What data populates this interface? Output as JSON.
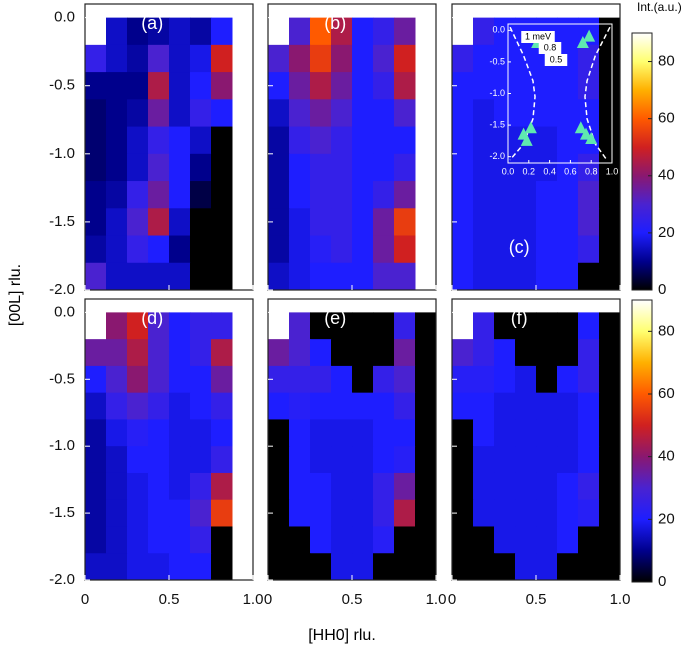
{
  "chart_data": {
    "type": "heatmap",
    "xlabel": "[HH0] rlu.",
    "ylabel": "[00L] rlu.",
    "xlim": [
      0,
      1
    ],
    "ylim": [
      -2,
      0.1
    ],
    "xticks": [
      0,
      0.5,
      {
        "value": 1,
        "label": "1.0"
      }
    ],
    "yticks": [
      {
        "value": 0,
        "label": "0.0"
      },
      -0.5,
      {
        "value": -1,
        "label": "-1.0"
      },
      -1.5,
      {
        "value": -2,
        "label": "-2.0"
      }
    ],
    "x_bins": [
      0,
      0.125,
      0.25,
      0.375,
      0.5,
      0.625,
      0.75,
      0.875,
      1
    ],
    "y_bins": [
      0,
      -0.2,
      -0.4,
      -0.6,
      -0.8,
      -1,
      -1.2,
      -1.4,
      -1.6,
      -1.8,
      -2
    ],
    "missing_color": "#ffffff",
    "colorbar": {
      "label": "Int.(a.u.)",
      "lim": [
        0,
        90
      ],
      "ticks": [
        0,
        20,
        40,
        60,
        80
      ],
      "colors": [
        "#000000",
        "#00008c",
        "#1e1eff",
        "#4a22d0",
        "#8a1870",
        "#d02020",
        "#ff5a00",
        "#ffb000",
        "#ffff70",
        "#ffffff"
      ]
    },
    "panels": [
      {
        "label": "(a)",
        "z": [
          [
            null,
            15,
            10,
            12,
            15,
            12,
            20,
            null
          ],
          [
            25,
            15,
            12,
            30,
            15,
            18,
            50,
            null
          ],
          [
            10,
            10,
            10,
            45,
            15,
            20,
            40,
            null
          ],
          [
            8,
            10,
            12,
            35,
            15,
            25,
            20,
            null
          ],
          [
            8,
            10,
            15,
            25,
            20,
            15,
            0,
            null
          ],
          [
            8,
            10,
            15,
            30,
            20,
            10,
            0,
            null
          ],
          [
            10,
            12,
            25,
            35,
            20,
            5,
            0,
            null
          ],
          [
            10,
            15,
            30,
            45,
            15,
            0,
            0,
            null
          ],
          [
            12,
            15,
            25,
            20,
            10,
            0,
            0,
            null
          ],
          [
            30,
            15,
            15,
            15,
            15,
            0,
            0,
            null
          ]
        ]
      },
      {
        "label": "(b)",
        "z": [
          [
            null,
            30,
            60,
            45,
            20,
            25,
            35,
            null
          ],
          [
            30,
            40,
            55,
            40,
            20,
            30,
            50,
            null
          ],
          [
            20,
            35,
            45,
            35,
            20,
            25,
            45,
            null
          ],
          [
            15,
            30,
            35,
            30,
            20,
            20,
            30,
            null
          ],
          [
            12,
            25,
            30,
            25,
            20,
            20,
            20,
            null
          ],
          [
            12,
            20,
            25,
            25,
            20,
            20,
            25,
            null
          ],
          [
            12,
            20,
            25,
            25,
            20,
            25,
            35,
            null
          ],
          [
            12,
            18,
            25,
            25,
            20,
            35,
            55,
            null
          ],
          [
            12,
            18,
            22,
            25,
            20,
            35,
            50,
            null
          ],
          [
            15,
            18,
            20,
            20,
            20,
            30,
            30,
            null
          ]
        ]
      },
      {
        "label": "(c)",
        "z": [
          [
            null,
            25,
            20,
            20,
            20,
            20,
            20,
            0
          ],
          [
            25,
            20,
            20,
            20,
            20,
            20,
            25,
            0
          ],
          [
            20,
            20,
            20,
            20,
            20,
            20,
            25,
            0
          ],
          [
            20,
            18,
            20,
            20,
            20,
            20,
            20,
            0
          ],
          [
            20,
            18,
            18,
            18,
            18,
            20,
            20,
            0
          ],
          [
            20,
            18,
            18,
            18,
            18,
            20,
            25,
            0
          ],
          [
            20,
            18,
            18,
            18,
            20,
            20,
            30,
            0
          ],
          [
            20,
            18,
            18,
            18,
            20,
            20,
            30,
            0
          ],
          [
            20,
            18,
            18,
            18,
            20,
            20,
            25,
            0
          ],
          [
            20,
            18,
            18,
            18,
            20,
            20,
            0,
            0
          ]
        ],
        "inset": {
          "type": "scatter",
          "xlim": [
            0,
            1
          ],
          "ylim": [
            -2.1,
            0.1
          ],
          "xticks": [
            {
              "value": 0,
              "label": "0.0"
            },
            0.2,
            0.4,
            0.6,
            0.8,
            {
              "value": 1,
              "label": "1.0"
            }
          ],
          "yticks": [
            {
              "value": 0,
              "label": "0.0"
            },
            -0.5,
            {
              "value": -1,
              "label": "-1.0"
            },
            -1.5,
            {
              "value": -2,
              "label": "-2.0"
            }
          ],
          "annotations": [
            "1 meV",
            "0.8",
            "0.5"
          ],
          "marker_color": "#5fe8b0",
          "x": [
            0.2,
            0.28,
            0.72,
            0.78,
            0.15,
            0.22,
            0.18,
            0.7,
            0.75,
            0.8
          ],
          "y": [
            -0.12,
            -0.2,
            -0.2,
            -0.1,
            -1.65,
            -1.55,
            -1.75,
            -1.55,
            -1.65,
            -1.72
          ],
          "curves": [
            {
              "color": "#ffffff",
              "x": [
                0.02,
                0.15,
                0.24,
                0.26,
                0.24,
                0.15,
                0.02
              ],
              "y": [
                0.05,
                -0.4,
                -0.8,
                -1.05,
                -1.4,
                -1.8,
                -2.05
              ]
            },
            {
              "color": "#ffffff",
              "x": [
                0.98,
                0.84,
                0.76,
                0.74,
                0.76,
                0.84,
                0.95
              ],
              "y": [
                0.05,
                -0.4,
                -0.8,
                -1.05,
                -1.4,
                -1.8,
                -2.05
              ]
            }
          ]
        }
      },
      {
        "label": "(d)",
        "z": [
          [
            null,
            40,
            50,
            30,
            20,
            25,
            25,
            null
          ],
          [
            35,
            35,
            45,
            30,
            20,
            25,
            45,
            null
          ],
          [
            20,
            30,
            40,
            30,
            20,
            20,
            35,
            null
          ],
          [
            15,
            25,
            30,
            25,
            18,
            20,
            25,
            null
          ],
          [
            12,
            18,
            22,
            20,
            18,
            18,
            20,
            null
          ],
          [
            12,
            15,
            20,
            20,
            18,
            18,
            25,
            null
          ],
          [
            12,
            15,
            18,
            20,
            18,
            25,
            45,
            null
          ],
          [
            12,
            15,
            18,
            20,
            20,
            30,
            55,
            null
          ],
          [
            12,
            15,
            18,
            20,
            20,
            25,
            0,
            null
          ],
          [
            15,
            15,
            18,
            18,
            20,
            20,
            0,
            null
          ]
        ]
      },
      {
        "label": "(e)",
        "z": [
          [
            null,
            30,
            0,
            0,
            0,
            0,
            25,
            0
          ],
          [
            35,
            30,
            20,
            0,
            0,
            0,
            35,
            0
          ],
          [
            25,
            25,
            25,
            20,
            0,
            25,
            30,
            0
          ],
          [
            20,
            22,
            20,
            20,
            20,
            20,
            25,
            0
          ],
          [
            0,
            20,
            18,
            18,
            18,
            20,
            20,
            0
          ],
          [
            0,
            20,
            18,
            18,
            18,
            20,
            22,
            0
          ],
          [
            0,
            20,
            20,
            18,
            18,
            25,
            35,
            0
          ],
          [
            0,
            20,
            20,
            18,
            18,
            25,
            45,
            0
          ],
          [
            0,
            0,
            20,
            18,
            18,
            22,
            0,
            0
          ],
          [
            0,
            0,
            0,
            18,
            18,
            0,
            0,
            0
          ]
        ]
      },
      {
        "label": "(f)",
        "z": [
          [
            null,
            25,
            0,
            0,
            0,
            0,
            20,
            0
          ],
          [
            30,
            25,
            20,
            0,
            0,
            0,
            25,
            0
          ],
          [
            22,
            22,
            20,
            18,
            0,
            20,
            25,
            0
          ],
          [
            20,
            20,
            18,
            18,
            18,
            18,
            20,
            0
          ],
          [
            0,
            20,
            18,
            18,
            18,
            18,
            20,
            0
          ],
          [
            0,
            18,
            18,
            18,
            18,
            18,
            20,
            0
          ],
          [
            0,
            18,
            18,
            18,
            18,
            20,
            25,
            0
          ],
          [
            0,
            18,
            18,
            18,
            18,
            20,
            22,
            0
          ],
          [
            0,
            0,
            18,
            18,
            18,
            20,
            0,
            0
          ],
          [
            0,
            0,
            0,
            18,
            18,
            0,
            0,
            0
          ]
        ]
      }
    ]
  }
}
